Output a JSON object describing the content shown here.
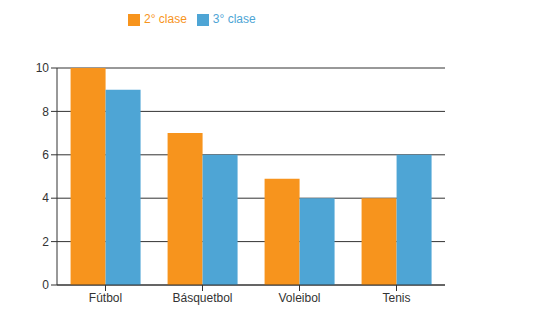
{
  "chart_data": {
    "type": "bar",
    "categories": [
      "Fútbol",
      "Básquetbol",
      "Voleibol",
      "Tenis"
    ],
    "series": [
      {
        "name": "2° clase",
        "color": "#f7941d",
        "values": [
          10,
          7,
          4.9,
          4
        ]
      },
      {
        "name": "3° clase",
        "color": "#4ea5d5",
        "values": [
          9,
          6,
          4,
          6
        ]
      }
    ],
    "ylim": [
      0,
      10
    ],
    "yticks": [
      0,
      2,
      4,
      6,
      8,
      10
    ],
    "grid": true,
    "legend": "top"
  }
}
